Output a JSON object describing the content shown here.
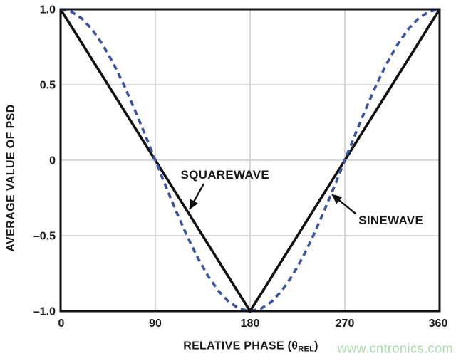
{
  "figure": {
    "background": "#ffffff",
    "watermark": {
      "text": "www.cntronics.com",
      "color": "#a9d8a9"
    }
  },
  "chart_data": {
    "type": "line",
    "title": "",
    "xlabel": {
      "prefix": "RELATIVE PHASE (",
      "symbol": "θ",
      "sub": "REL",
      "suffix": ")"
    },
    "ylabel": "AVERAGE VALUE OF PSD",
    "xlim": [
      0,
      360
    ],
    "ylim": [
      -1,
      1
    ],
    "x_ticks": [
      0,
      90,
      180,
      270,
      360
    ],
    "x_tick_labels": [
      "0",
      "90",
      "180",
      "270",
      "360"
    ],
    "y_ticks": [
      1,
      0.5,
      0,
      -0.5,
      -1
    ],
    "y_tick_labels": [
      "1.0",
      "0.5",
      "0",
      "–0.5",
      "–1.0"
    ],
    "grid": {
      "show": true,
      "x_at": [
        90,
        180,
        270
      ],
      "y_at": [
        0.5,
        0,
        -0.5
      ],
      "color": "#cccccc"
    },
    "frame_color": "#111111",
    "series": [
      {
        "name": "SQUAREWAVE",
        "color": "#111111",
        "style": "solid",
        "x": [
          0,
          180,
          360
        ],
        "y": [
          1,
          -1,
          1
        ]
      },
      {
        "name": "SINEWAVE",
        "color": "#3a54a5",
        "style": "dashed",
        "x": [
          0,
          10,
          20,
          30,
          40,
          50,
          60,
          70,
          80,
          90,
          100,
          110,
          120,
          130,
          140,
          150,
          160,
          170,
          180,
          190,
          200,
          210,
          220,
          230,
          240,
          250,
          260,
          270,
          280,
          290,
          300,
          310,
          320,
          330,
          340,
          350,
          360
        ],
        "y": [
          1,
          0.985,
          0.94,
          0.866,
          0.766,
          0.643,
          0.5,
          0.342,
          0.174,
          0,
          -0.174,
          -0.342,
          -0.5,
          -0.643,
          -0.766,
          -0.866,
          -0.94,
          -0.985,
          -1,
          -0.985,
          -0.94,
          -0.866,
          -0.766,
          -0.643,
          -0.5,
          -0.342,
          -0.174,
          0,
          0.174,
          0.342,
          0.5,
          0.643,
          0.766,
          0.866,
          0.94,
          0.985,
          1
        ]
      }
    ],
    "annotations": [
      {
        "label": "SQUAREWAVE",
        "text_at": [
          114,
          -0.123
        ],
        "text_anchor": "start",
        "arrow_from": [
          136,
          -0.156
        ],
        "arrow_to": [
          122.5,
          -0.325
        ]
      },
      {
        "label": "SINEWAVE",
        "text_at": [
          283,
          -0.425
        ],
        "text_anchor": "start",
        "arrow_from": [
          280.5,
          -0.356
        ],
        "arrow_to": [
          258,
          -0.228
        ]
      }
    ],
    "legend": "none"
  }
}
